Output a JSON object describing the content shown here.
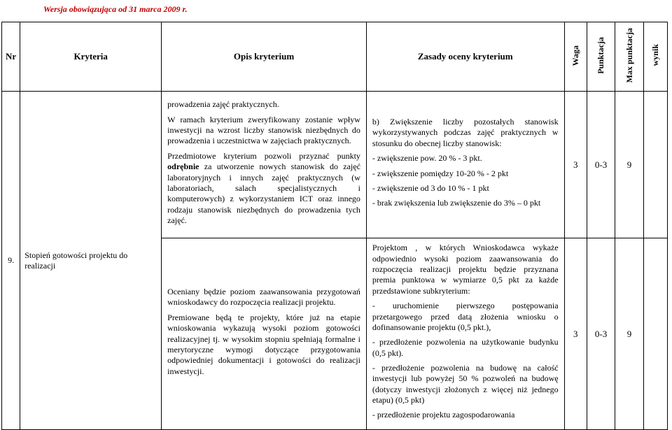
{
  "header_note": "Wersja obowiązująca od 31 marca 2009 r.",
  "columns": {
    "nr": "Nr",
    "kryteria": "Kryteria",
    "opis": "Opis kryterium",
    "zasady": "Zasady oceny kryterium",
    "waga": "Waga",
    "punktacja": "Punktacja",
    "max_punktacja": "Max punktacja",
    "wynik": "wynik"
  },
  "row1": {
    "opis_p1": "prowadzenia zajęć praktycznych.",
    "opis_p2": "W ramach kryterium zweryfikowany zostanie wpływ inwestycji na wzrost liczby stanowisk niezbędnych do prowadzenia i uczestnictwa w zajęciach praktycznych.",
    "opis_p3_a": "Przedmiotowe kryterium pozwoli przyznać punkty ",
    "opis_p3_b": "odrębnie",
    "opis_p3_c": " za utworzenie nowych stanowisk do zajęć laboratoryjnych i innych zajęć praktycznych (w laboratoriach, salach specjalistycznych i komputerowych) z wykorzystaniem ICT oraz innego rodzaju stanowisk niezbędnych do prowadzenia tych zajęć.",
    "zas_p1": "b) Zwiększenie liczby pozostałych stanowisk wykorzystywanych podczas zajęć praktycznych w stosunku do obecnej liczby stanowisk:",
    "zas_l1": "- zwiększenie pow. 20 % - 3 pkt.",
    "zas_l2": "- zwiększenie pomiędzy 10-20 % - 2 pkt",
    "zas_l3": "- zwiększenie od 3 do 10 % - 1 pkt",
    "zas_l4": "- brak zwiększenia lub zwiększenie do 3% – 0 pkt",
    "waga": "3",
    "pkt": "0-3",
    "max": "9"
  },
  "row2": {
    "nr": "9.",
    "kryteria": "Stopień gotowości projektu do realizacji",
    "opis_p1": "Oceniany będzie poziom zaawansowania przygotowań wnioskodawcy do rozpoczęcia realizacji projektu.",
    "opis_p2": "Premiowane będą te projekty, które już na etapie wnioskowania wykazują wysoki poziom gotowości realizacyjnej tj. w wysokim stopniu spełniają formalne i merytoryczne wymogi dotyczące przygotowania odpowiedniej dokumentacji i gotowości do  realizacji inwestycji.",
    "zas_p1": "Projektom , w których Wnioskodawca wykaże odpowiednio wysoki poziom zaawansowania do rozpoczęcia realizacji projektu będzie przyznana premia punktowa w wymiarze 0,5 pkt za każde przedstawione subkryterium:",
    "zas_l1": "-  uruchomienie pierwszego postępowania przetargowego przed datą złożenia wniosku o dofinansowanie projektu (0,5 pkt.),",
    "zas_l2": "- przedłożenie pozwolenia na użytkowanie budynku  (0,5 pkt).",
    "zas_l3": "- przedłożenie pozwolenia na budowę na całość  inwestycji lub powyżej 50 % pozwoleń na budowę (dotyczy inwestycji złożonych z więcej niż jednego etapu) (0,5 pkt)",
    "zas_l4": "- przedłożenie projektu zagospodarowania",
    "waga": "3",
    "pkt": "0-3",
    "max": "9"
  }
}
